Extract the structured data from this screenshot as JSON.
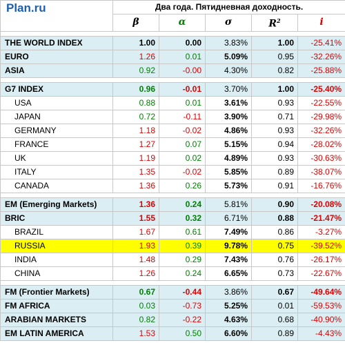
{
  "logo": "Plan.ru",
  "title": "Два года. Пятидневная доходность.",
  "columns": {
    "beta": "β",
    "alpha": "α",
    "sigma": "σ",
    "r2": "R",
    "r2_sup": "2",
    "i": "i"
  },
  "colors": {
    "blue_row": "#daeef3",
    "highlight": "#ffff00",
    "negative": "#e00000",
    "positive": "#008000",
    "logo": "#1a5fb4"
  },
  "rows": [
    {
      "name": "THE WORLD INDEX",
      "beta": "1.00",
      "alpha": "0.00",
      "sigma": "3.83%",
      "r2": "1.00",
      "i": "-25.41%"
    },
    {
      "name": "EURO",
      "beta": "1.26",
      "alpha": "0.01",
      "sigma": "5.09%",
      "r2": "0.95",
      "i": "-32.26%"
    },
    {
      "name": "ASIA",
      "beta": "0.92",
      "alpha": "-0.00",
      "sigma": "4.30%",
      "r2": "0.82",
      "i": "-25.88%"
    },
    {
      "name": "G7 INDEX",
      "beta": "0.96",
      "alpha": "-0.01",
      "sigma": "3.70%",
      "r2": "1.00",
      "i": "-25.40%"
    },
    {
      "name": "USA",
      "beta": "0.88",
      "alpha": "0.01",
      "sigma": "3.61%",
      "r2": "0.93",
      "i": "-22.55%"
    },
    {
      "name": "JAPAN",
      "beta": "0.72",
      "alpha": "-0.11",
      "sigma": "3.90%",
      "r2": "0.71",
      "i": "-29.98%"
    },
    {
      "name": "GERMANY",
      "beta": "1.18",
      "alpha": "-0.02",
      "sigma": "4.86%",
      "r2": "0.93",
      "i": "-32.26%"
    },
    {
      "name": "FRANCE",
      "beta": "1.27",
      "alpha": "0.07",
      "sigma": "5.15%",
      "r2": "0.94",
      "i": "-28.02%"
    },
    {
      "name": "UK",
      "beta": "1.19",
      "alpha": "0.02",
      "sigma": "4.89%",
      "r2": "0.93",
      "i": "-30.63%"
    },
    {
      "name": "ITALY",
      "beta": "1.35",
      "alpha": "-0.02",
      "sigma": "5.85%",
      "r2": "0.89",
      "i": "-38.07%"
    },
    {
      "name": "CANADA",
      "beta": "1.36",
      "alpha": "0.26",
      "sigma": "5.73%",
      "r2": "0.91",
      "i": "-16.76%"
    },
    {
      "name": "EM (Emerging Markets)",
      "beta": "1.36",
      "alpha": "0.24",
      "sigma": "5.81%",
      "r2": "0.90",
      "i": "-20.08%"
    },
    {
      "name": "BRIC",
      "beta": "1.55",
      "alpha": "0.32",
      "sigma": "6.71%",
      "r2": "0.88",
      "i": "-21.47%"
    },
    {
      "name": "BRAZIL",
      "beta": "1.67",
      "alpha": "0.61",
      "sigma": "7.49%",
      "r2": "0.86",
      "i": "-3.27%"
    },
    {
      "name": "RUSSIA",
      "beta": "1.93",
      "alpha": "0.39",
      "sigma": "9.78%",
      "r2": "0.75",
      "i": "-39.52%"
    },
    {
      "name": "INDIA",
      "beta": "1.48",
      "alpha": "0.29",
      "sigma": "7.43%",
      "r2": "0.76",
      "i": "-26.17%"
    },
    {
      "name": "CHINA",
      "beta": "1.26",
      "alpha": "0.24",
      "sigma": "6.65%",
      "r2": "0.73",
      "i": "-22.67%"
    },
    {
      "name": "FM (Frontier Markets)",
      "beta": "0.67",
      "alpha": "-0.44",
      "sigma": "3.86%",
      "r2": "0.67",
      "i": "-49.64%"
    },
    {
      "name": "FM AFRICA",
      "beta": "0.03",
      "alpha": "-0.73",
      "sigma": "5.25%",
      "r2": "0.01",
      "i": "-59.53%"
    },
    {
      "name": "ARABIAN MARKETS",
      "beta": "0.82",
      "alpha": "-0.22",
      "sigma": "4.63%",
      "r2": "0.68",
      "i": "-40.90%"
    },
    {
      "name": "EM LATIN AMERICA",
      "beta": "1.53",
      "alpha": "0.50",
      "sigma": "6.60%",
      "r2": "0.89",
      "i": "-4.43%"
    }
  ]
}
